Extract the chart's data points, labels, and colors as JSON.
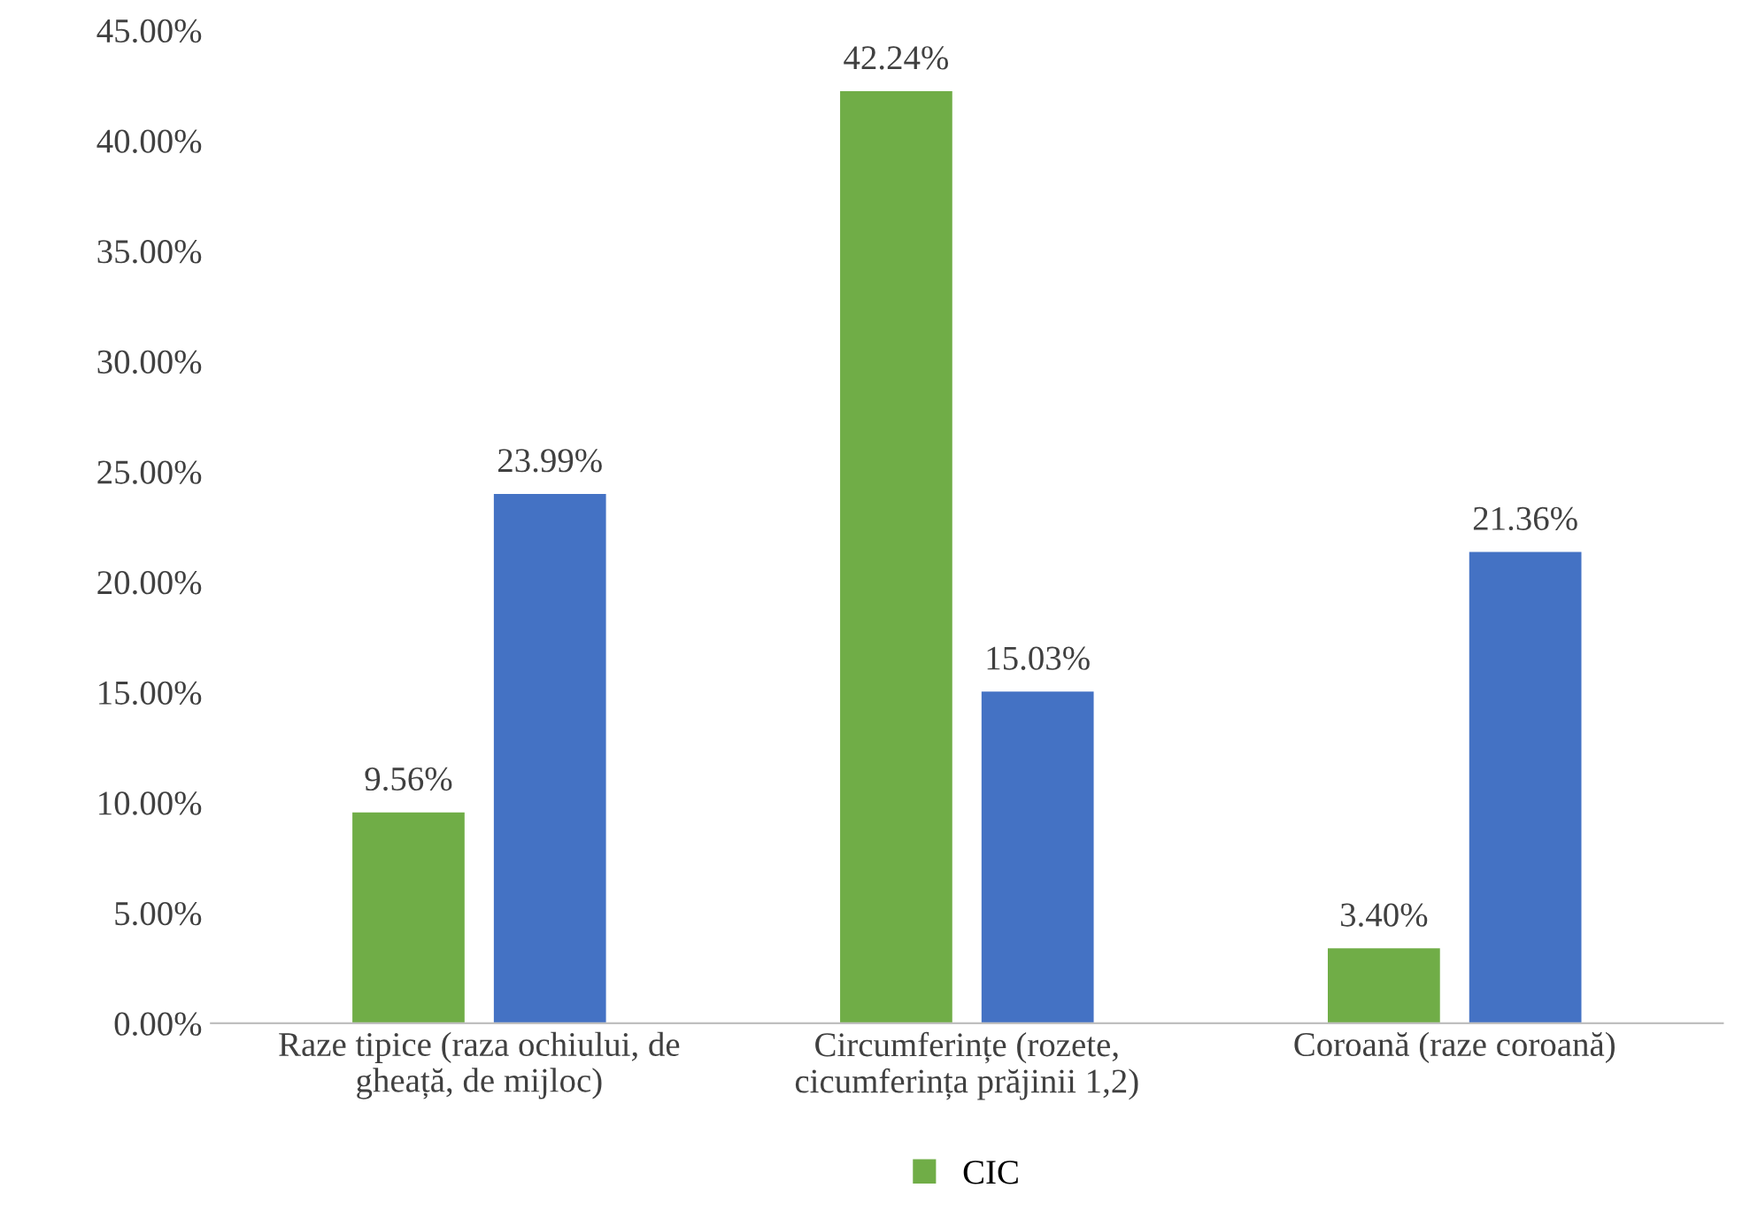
{
  "chart_data": {
    "type": "bar",
    "categories": [
      "Raze tipice (raza ochiului, de\ngheață, de mijloc)",
      "Circumferințe (rozete,\ncicumferința prăjinii 1,2)",
      "Coroană (raze coroană)"
    ],
    "series": [
      {
        "name": "CIC",
        "color": "#70ad47",
        "values": [
          9.56,
          42.24,
          3.4
        ],
        "value_labels": [
          "9.56%",
          "42.24%",
          "3.40%"
        ]
      },
      {
        "color": "#4472c4",
        "values": [
          23.99,
          15.03,
          21.36
        ],
        "value_labels": [
          "23.99%",
          "15.03%",
          "21.36%"
        ]
      }
    ],
    "ylim": [
      0,
      45
    ],
    "yticks": [
      {
        "value": 0,
        "label": "0.00%"
      },
      {
        "value": 5,
        "label": "5.00%"
      },
      {
        "value": 10,
        "label": "10.00%"
      },
      {
        "value": 15,
        "label": "15.00%"
      },
      {
        "value": 20,
        "label": "20.00%"
      },
      {
        "value": 25,
        "label": "25.00%"
      },
      {
        "value": 30,
        "label": "30.00%"
      },
      {
        "value": 35,
        "label": "35.00%"
      },
      {
        "value": 40,
        "label": "40.00%"
      },
      {
        "value": 45,
        "label": "45.00%"
      }
    ],
    "grid": false,
    "legend": "bottom"
  }
}
